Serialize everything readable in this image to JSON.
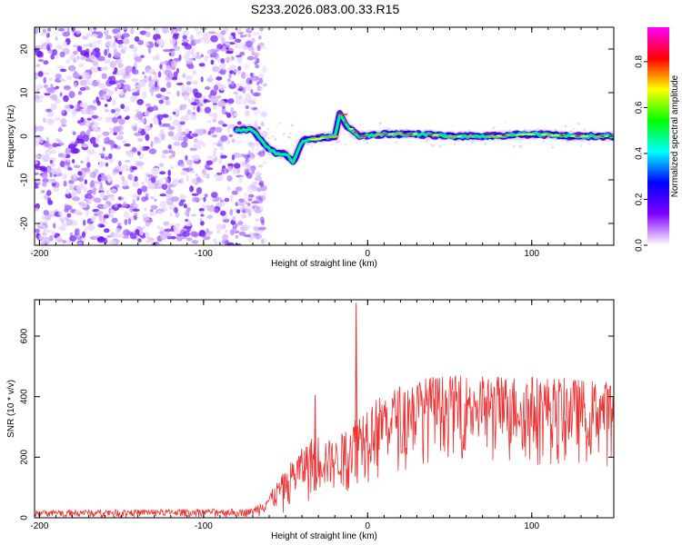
{
  "title": "S233.2026.083.00.33.R15",
  "chart_data": [
    {
      "type": "heatmap",
      "xlabel": "Height of straight line (km)",
      "ylabel": "Frequency (Hz)",
      "xlim": [
        -203,
        150
      ],
      "ylim": [
        -25,
        25
      ],
      "xticks": [
        -200,
        -100,
        0,
        100
      ],
      "yticks": [
        -20,
        -10,
        0,
        10,
        20
      ],
      "colorbar": {
        "label": "Normalized spectral amplitude",
        "range": [
          0,
          0.95
        ],
        "ticks": [
          0.0,
          0.2,
          0.4,
          0.6,
          0.8
        ],
        "colors": [
          "#ffffff",
          "#8000ff",
          "#0000ff",
          "#00ffff",
          "#00ff00",
          "#ffff00",
          "#ff0000",
          "#ff00ff"
        ]
      },
      "noise_region": {
        "x_from": -203,
        "x_to": -67
      },
      "signal_track": [
        {
          "x": -80,
          "y": 1.5
        },
        {
          "x": -70,
          "y": 1.5
        },
        {
          "x": -65,
          "y": -1
        },
        {
          "x": -60,
          "y": -3
        },
        {
          "x": -55,
          "y": -4
        },
        {
          "x": -50,
          "y": -4
        },
        {
          "x": -45,
          "y": -6
        },
        {
          "x": -40,
          "y": -1
        },
        {
          "x": -30,
          "y": -0.5
        },
        {
          "x": -20,
          "y": 0
        },
        {
          "x": -17,
          "y": 5
        },
        {
          "x": -12,
          "y": 2
        },
        {
          "x": -5,
          "y": 0
        },
        {
          "x": 10,
          "y": 0.5
        },
        {
          "x": 30,
          "y": 0.5
        },
        {
          "x": 50,
          "y": 0
        },
        {
          "x": 75,
          "y": 0
        },
        {
          "x": 100,
          "y": 0.5
        },
        {
          "x": 125,
          "y": 0
        },
        {
          "x": 150,
          "y": 0
        }
      ]
    },
    {
      "type": "line",
      "xlabel": "Height of straight line (km)",
      "ylabel": "SNR (10 * v/v)",
      "xlim": [
        -203,
        150
      ],
      "ylim": [
        0,
        720
      ],
      "xticks": [
        -200,
        -100,
        0,
        100
      ],
      "yticks": [
        0,
        200,
        400,
        600
      ],
      "color": "#ee3333",
      "envelope": [
        {
          "x": -203,
          "lo": 0,
          "hi": 25
        },
        {
          "x": -70,
          "lo": 0,
          "hi": 30
        },
        {
          "x": -60,
          "lo": 5,
          "hi": 80
        },
        {
          "x": -45,
          "lo": 20,
          "hi": 200
        },
        {
          "x": -32,
          "lo": 40,
          "hi": 280
        },
        {
          "x": -20,
          "lo": 60,
          "hi": 250
        },
        {
          "x": -10,
          "lo": 80,
          "hi": 320
        },
        {
          "x": 0,
          "lo": 100,
          "hi": 380
        },
        {
          "x": 20,
          "lo": 150,
          "hi": 440
        },
        {
          "x": 40,
          "lo": 180,
          "hi": 470
        },
        {
          "x": 60,
          "lo": 180,
          "hi": 470
        },
        {
          "x": 100,
          "lo": 150,
          "hi": 470
        },
        {
          "x": 150,
          "lo": 150,
          "hi": 450
        }
      ],
      "spikes": [
        {
          "x": -32,
          "y": 405
        },
        {
          "x": -7,
          "y": 710
        }
      ]
    }
  ]
}
